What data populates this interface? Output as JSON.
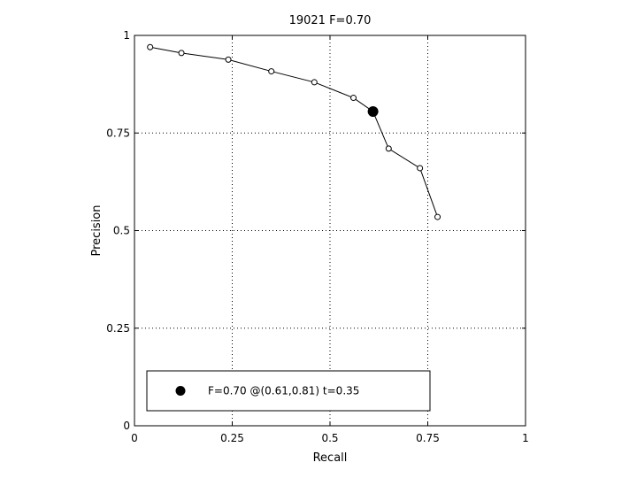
{
  "chart_data": {
    "type": "line",
    "title": "19021 F=0.70",
    "xlabel": "Recall",
    "ylabel": "Precision",
    "xlim": [
      0,
      1
    ],
    "ylim": [
      0,
      1
    ],
    "grid": true,
    "grid_style": "dotted",
    "x_ticks": [
      0,
      0.25,
      0.5,
      0.75,
      1
    ],
    "x_tick_labels": [
      "0",
      "0.25",
      "0.5",
      "0.75",
      "1"
    ],
    "y_ticks": [
      0,
      0.25,
      0.5,
      0.75,
      1
    ],
    "y_tick_labels": [
      "0",
      "0.25",
      "0.5",
      "0.75",
      "1"
    ],
    "series": [
      {
        "marker": "open-circle",
        "color": "#000000",
        "x": [
          0.04,
          0.12,
          0.24,
          0.35,
          0.46,
          0.56,
          0.65,
          0.73,
          0.775
        ],
        "y": [
          0.97,
          0.955,
          0.938,
          0.908,
          0.88,
          0.84,
          0.71,
          0.66,
          0.535
        ]
      }
    ],
    "highlight_point": {
      "x": 0.61,
      "y": 0.805,
      "marker": "filled-circle",
      "color": "#000000"
    },
    "legend": {
      "placement": "bottom-left",
      "entries": [
        {
          "label": "F=0.70 @(0.61,0.81) t=0.35",
          "marker": "filled-circle"
        }
      ]
    }
  }
}
